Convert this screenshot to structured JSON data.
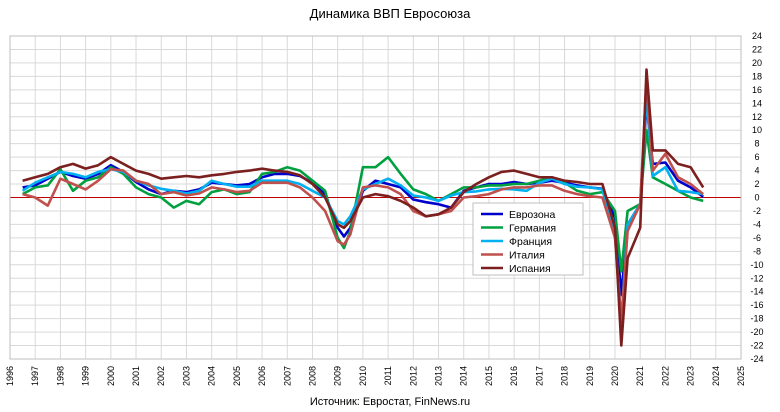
{
  "chart_data": {
    "type": "line",
    "title": "Динамика ВВП Евросоюза",
    "source": "Источник: Евростат, FinNews.ru",
    "x_range": [
      1996,
      2025
    ],
    "x_ticks": [
      "1996",
      "1997",
      "1998",
      "1999",
      "2000",
      "2001",
      "2002",
      "2003",
      "2004",
      "2005",
      "2006",
      "2007",
      "2008",
      "2009",
      "2010",
      "2011",
      "2012",
      "2013",
      "2014",
      "2015",
      "2016",
      "2017",
      "2018",
      "2019",
      "2020",
      "2021",
      "2022",
      "2023",
      "2024",
      "2025"
    ],
    "ylim": [
      -24,
      24
    ],
    "y_ticks": [
      24,
      22,
      20,
      18,
      16,
      14,
      12,
      10,
      8,
      6,
      4,
      2,
      0,
      -2,
      -4,
      -6,
      -8,
      -10,
      -12,
      -14,
      -16,
      -18,
      -20,
      -22,
      -24
    ],
    "y_axis_side": "right",
    "grid": true,
    "legend_position": "center-right",
    "zero_line_color": "#c00000",
    "series": [
      {
        "name": "Еврозона",
        "color": "#0000cc",
        "x": [
          1996.5,
          1997,
          1997.5,
          1998,
          1998.5,
          1999,
          1999.5,
          2000,
          2000.5,
          2001,
          2001.5,
          2002,
          2002.5,
          2003,
          2003.5,
          2004,
          2004.5,
          2005,
          2005.5,
          2006,
          2006.5,
          2007,
          2007.5,
          2008,
          2008.5,
          2009,
          2009.25,
          2009.5,
          2010,
          2010.5,
          2011,
          2011.5,
          2012,
          2012.5,
          2013,
          2013.5,
          2014,
          2014.5,
          2015,
          2015.5,
          2016,
          2016.5,
          2017,
          2017.5,
          2018,
          2018.5,
          2019,
          2019.5,
          2020,
          2020.25,
          2020.5,
          2021,
          2021.25,
          2021.5,
          2022,
          2022.5,
          2023,
          2023.5
        ],
        "values": [
          1.5,
          1.8,
          2.8,
          3.8,
          3.2,
          2.8,
          3.5,
          4.8,
          3.8,
          2.3,
          1.2,
          0.5,
          1,
          0.8,
          1.2,
          2.2,
          2,
          1.8,
          2,
          3,
          3.5,
          3.5,
          3.2,
          2.2,
          0.5,
          -4.5,
          -5.8,
          -4.5,
          1,
          2.5,
          2,
          1.5,
          -0.3,
          -0.7,
          -1,
          -1.5,
          1,
          1.5,
          2,
          2,
          2.3,
          2,
          2.2,
          2.5,
          2.2,
          1.8,
          1.5,
          1.3,
          -3,
          -14.5,
          -4,
          -1,
          14,
          5,
          5.2,
          2.5,
          1.5,
          0.1
        ]
      },
      {
        "name": "Германия",
        "color": "#00a040",
        "x": [
          1996.5,
          1997,
          1997.5,
          1998,
          1998.5,
          1999,
          1999.5,
          2000,
          2000.5,
          2001,
          2001.5,
          2002,
          2002.5,
          2003,
          2003.5,
          2004,
          2004.5,
          2005,
          2005.5,
          2006,
          2006.5,
          2007,
          2007.5,
          2008,
          2008.5,
          2009,
          2009.25,
          2009.5,
          2010,
          2010.5,
          2011,
          2011.5,
          2012,
          2012.5,
          2013,
          2013.5,
          2014,
          2014.5,
          2015,
          2015.5,
          2016,
          2016.5,
          2017,
          2017.5,
          2018,
          2018.5,
          2019,
          2019.5,
          2020,
          2020.25,
          2020.5,
          2021,
          2021.25,
          2021.5,
          2022,
          2022.5,
          2023,
          2023.5
        ],
        "values": [
          0.5,
          1.5,
          1.8,
          4.2,
          1,
          2.5,
          3,
          4.5,
          3.5,
          1.5,
          0.5,
          0,
          -1.5,
          -0.5,
          -1,
          0.8,
          1.2,
          0.5,
          0.8,
          3.5,
          3.8,
          4.5,
          4,
          2.5,
          1,
          -6,
          -7.5,
          -5,
          4.5,
          4.5,
          6,
          3.5,
          1.2,
          0.5,
          -0.5,
          0.5,
          1.5,
          1.5,
          1.8,
          1.8,
          2,
          2,
          2.5,
          3,
          2.2,
          1,
          0.5,
          0.8,
          -2,
          -11,
          -2,
          -1,
          10,
          3,
          2,
          1,
          0,
          -0.5
        ]
      },
      {
        "name": "Франция",
        "color": "#00b0f0",
        "x": [
          1996.5,
          1997,
          1997.5,
          1998,
          1998.5,
          1999,
          1999.5,
          2000,
          2000.5,
          2001,
          2001.5,
          2002,
          2002.5,
          2003,
          2003.5,
          2004,
          2004.5,
          2005,
          2005.5,
          2006,
          2006.5,
          2007,
          2007.5,
          2008,
          2008.5,
          2009,
          2009.25,
          2009.5,
          2010,
          2010.5,
          2011,
          2011.5,
          2012,
          2012.5,
          2013,
          2013.5,
          2014,
          2014.5,
          2015,
          2015.5,
          2016,
          2016.5,
          2017,
          2017.5,
          2018,
          2018.5,
          2019,
          2019.5,
          2020,
          2020.25,
          2020.5,
          2021,
          2021.25,
          2021.5,
          2022,
          2022.5,
          2023,
          2023.5
        ],
        "values": [
          1,
          2.2,
          3,
          3.8,
          3.5,
          3,
          3.8,
          4.2,
          3.8,
          2.5,
          1.8,
          1.3,
          1,
          0.6,
          1,
          2.5,
          2,
          1.6,
          1.6,
          2.5,
          2.5,
          2.5,
          2,
          1,
          0,
          -3.5,
          -4,
          -2.8,
          1.2,
          2,
          2.8,
          1.8,
          0.3,
          0,
          -0.5,
          0.3,
          0.8,
          0.9,
          1.2,
          1.3,
          1.2,
          1,
          2.2,
          2.8,
          2,
          1.6,
          1.5,
          1.2,
          -5.8,
          -18.5,
          -4,
          -1,
          15,
          3.2,
          4.5,
          1,
          0.8,
          0.5
        ]
      },
      {
        "name": "Италия",
        "color": "#c0504d",
        "x": [
          1996.5,
          1997,
          1997.5,
          1998,
          1998.5,
          1999,
          1999.5,
          2000,
          2000.5,
          2001,
          2001.5,
          2002,
          2002.5,
          2003,
          2003.5,
          2004,
          2004.5,
          2005,
          2005.5,
          2006,
          2006.5,
          2007,
          2007.5,
          2008,
          2008.5,
          2009,
          2009.25,
          2009.5,
          2010,
          2010.5,
          2011,
          2011.5,
          2012,
          2012.5,
          2013,
          2013.5,
          2014,
          2014.5,
          2015,
          2015.5,
          2016,
          2016.5,
          2017,
          2017.5,
          2018,
          2018.5,
          2019,
          2019.5,
          2020,
          2020.25,
          2020.5,
          2021,
          2021.25,
          2021.5,
          2022,
          2022.5,
          2023,
          2023.5
        ],
        "values": [
          0.5,
          0,
          -1.2,
          2.8,
          2,
          1.2,
          2.5,
          4.2,
          4,
          2.5,
          2,
          0.5,
          0.8,
          0.3,
          0.6,
          1.5,
          1.2,
          0.8,
          1,
          2.2,
          2.2,
          2.2,
          1.5,
          0,
          -2,
          -6.5,
          -7,
          -5.5,
          1.5,
          1.8,
          1.5,
          0.5,
          -2,
          -2.8,
          -2.5,
          -2,
          0,
          0.2,
          0.5,
          1.2,
          1.5,
          1.5,
          1.8,
          1.8,
          1,
          0.5,
          0.2,
          0,
          -6,
          -18.5,
          -5,
          -1,
          17.5,
          4,
          6.5,
          3,
          2,
          0.5
        ]
      },
      {
        "name": "Испания",
        "color": "#7b1f1f",
        "x": [
          1996.5,
          1997,
          1997.5,
          1998,
          1998.5,
          1999,
          1999.5,
          2000,
          2000.5,
          2001,
          2001.5,
          2002,
          2002.5,
          2003,
          2003.5,
          2004,
          2004.5,
          2005,
          2005.5,
          2006,
          2006.5,
          2007,
          2007.5,
          2008,
          2008.5,
          2009,
          2009.25,
          2009.5,
          2010,
          2010.5,
          2011,
          2011.5,
          2012,
          2012.5,
          2013,
          2013.5,
          2014,
          2014.5,
          2015,
          2015.5,
          2016,
          2016.5,
          2017,
          2017.5,
          2018,
          2018.5,
          2019,
          2019.5,
          2020,
          2020.25,
          2020.5,
          2021,
          2021.25,
          2021.5,
          2022,
          2022.5,
          2023,
          2023.5
        ],
        "values": [
          2.5,
          3,
          3.5,
          4.5,
          5,
          4.3,
          4.8,
          6,
          5,
          4,
          3.5,
          2.8,
          3,
          3.2,
          3,
          3.3,
          3.5,
          3.8,
          4,
          4.3,
          4,
          3.8,
          3.3,
          2,
          0,
          -4,
          -4.5,
          -3.5,
          0,
          0.5,
          0.2,
          -0.5,
          -1.5,
          -2.8,
          -2.5,
          -1.5,
          0.8,
          2,
          3,
          3.8,
          4,
          3.5,
          3,
          3,
          2.5,
          2.3,
          2,
          2,
          -4.5,
          -22,
          -9,
          -4.5,
          19,
          7,
          7,
          5,
          4.5,
          1.5
        ]
      }
    ]
  }
}
